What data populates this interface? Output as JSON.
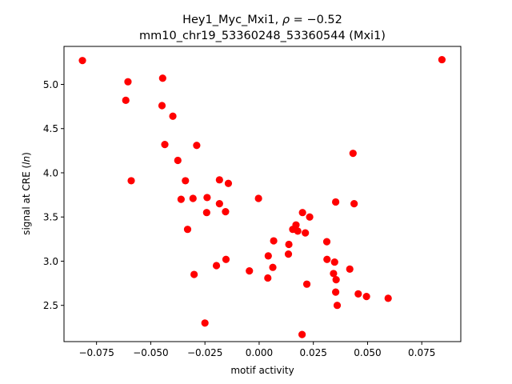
{
  "chart_data": {
    "type": "scatter",
    "title_line1_prefix": "Hey1_Myc_Mxi1, ",
    "title_line1_rho": "ρ",
    "title_line1_suffix": " = −0.52",
    "title_line2": "mm10_chr19_53360248_53360544 (Mxi1)",
    "xlabel": "motif activity",
    "ylabel_prefix": "signal at CRE (",
    "ylabel_italic": "ln",
    "ylabel_suffix": ")",
    "xlim": [
      -0.09,
      0.093
    ],
    "ylim": [
      2.09,
      5.43
    ],
    "xticks": [
      -0.075,
      -0.05,
      -0.025,
      0.0,
      0.025,
      0.05,
      0.075
    ],
    "xtick_labels": [
      "−0.075",
      "−0.050",
      "−0.025",
      "0.000",
      "0.025",
      "0.050",
      "0.075"
    ],
    "yticks": [
      2.5,
      3.0,
      3.5,
      4.0,
      4.5,
      5.0
    ],
    "ytick_labels": [
      "2.5",
      "3.0",
      "3.5",
      "4.0",
      "4.5",
      "5.0"
    ],
    "grid": false,
    "legend": "none",
    "marker_color": "#ff0000",
    "points": [
      [
        -0.0815,
        5.27
      ],
      [
        0.0843,
        5.28
      ],
      [
        -0.0605,
        5.03
      ],
      [
        -0.0445,
        5.07
      ],
      [
        -0.0615,
        4.82
      ],
      [
        -0.0448,
        4.76
      ],
      [
        -0.0398,
        4.64
      ],
      [
        -0.0435,
        4.32
      ],
      [
        -0.0288,
        4.31
      ],
      [
        0.0433,
        4.22
      ],
      [
        -0.0375,
        4.14
      ],
      [
        -0.059,
        3.91
      ],
      [
        -0.034,
        3.91
      ],
      [
        -0.0183,
        3.92
      ],
      [
        -0.0142,
        3.88
      ],
      [
        -0.036,
        3.7
      ],
      [
        -0.0305,
        3.71
      ],
      [
        -0.024,
        3.72
      ],
      [
        -0.0003,
        3.71
      ],
      [
        -0.0183,
        3.65
      ],
      [
        0.0353,
        3.67
      ],
      [
        0.0438,
        3.65
      ],
      [
        -0.0242,
        3.55
      ],
      [
        -0.0155,
        3.56
      ],
      [
        0.02,
        3.55
      ],
      [
        0.0233,
        3.5
      ],
      [
        0.017,
        3.41
      ],
      [
        -0.033,
        3.36
      ],
      [
        0.0155,
        3.36
      ],
      [
        0.0178,
        3.34
      ],
      [
        0.0213,
        3.32
      ],
      [
        0.0067,
        3.23
      ],
      [
        0.0137,
        3.19
      ],
      [
        0.0312,
        3.22
      ],
      [
        0.0135,
        3.08
      ],
      [
        0.0042,
        3.06
      ],
      [
        -0.0153,
        3.02
      ],
      [
        0.0313,
        3.02
      ],
      [
        0.0348,
        2.99
      ],
      [
        -0.0197,
        2.95
      ],
      [
        0.0063,
        2.93
      ],
      [
        -0.0045,
        2.89
      ],
      [
        0.0418,
        2.91
      ],
      [
        -0.03,
        2.85
      ],
      [
        0.0343,
        2.86
      ],
      [
        0.004,
        2.81
      ],
      [
        0.0355,
        2.79
      ],
      [
        0.022,
        2.74
      ],
      [
        0.0353,
        2.65
      ],
      [
        0.0457,
        2.63
      ],
      [
        0.0495,
        2.6
      ],
      [
        0.0595,
        2.58
      ],
      [
        0.036,
        2.5
      ],
      [
        -0.025,
        2.3
      ],
      [
        0.0198,
        2.17
      ]
    ]
  }
}
